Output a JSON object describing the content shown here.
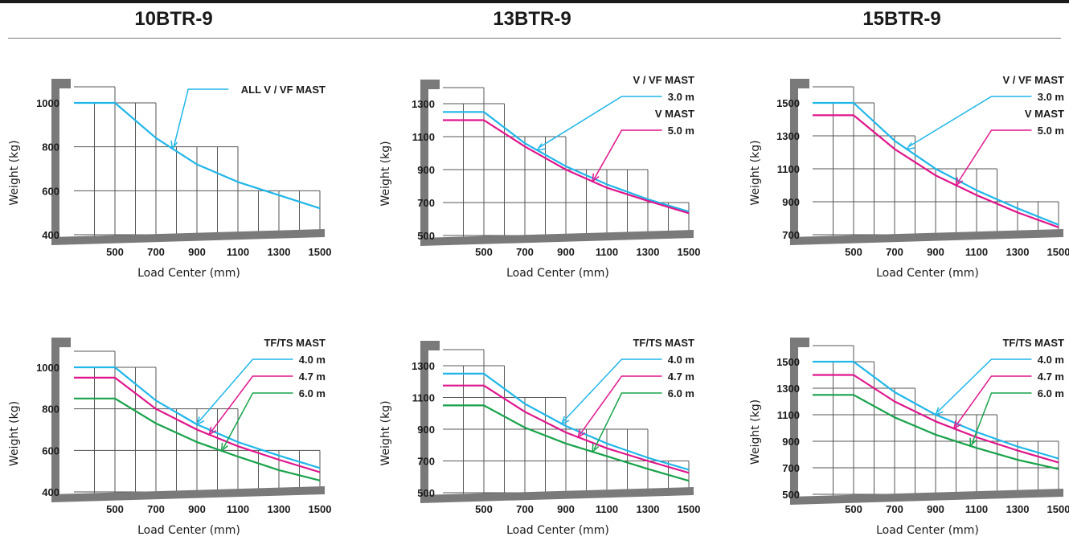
{
  "models": [
    "10BTR-9",
    "13BTR-9",
    "15BTR-9"
  ],
  "colors": {
    "blue": "#1fb6ea",
    "magenta": "#e0158c",
    "green": "#17a24a",
    "grid": "#555555",
    "frame": "#7a7a7a"
  },
  "chart_data": [
    {
      "type": "line",
      "xlabel": "Load Center (mm)",
      "ylabel": "Weight (kg)",
      "xticks": [
        500,
        700,
        900,
        1100,
        1300,
        1500
      ],
      "yticks": [
        400,
        600,
        800,
        1000
      ],
      "xlim": [
        300,
        1500
      ],
      "ylim": [
        400,
        1000
      ],
      "series": [
        {
          "color": "blue",
          "x": [
            300,
            500,
            700,
            900,
            1100,
            1300,
            1500
          ],
          "y": [
            1000,
            1000,
            840,
            720,
            640,
            580,
            520
          ]
        }
      ],
      "annotations": [
        {
          "text": "ALL V / VF  MAST",
          "series": 0
        }
      ]
    },
    {
      "type": "line",
      "xlabel": "Load Center (mm)",
      "ylabel": "Weight (kg)",
      "xticks": [
        500,
        700,
        900,
        1100,
        1300,
        1500
      ],
      "yticks": [
        500,
        700,
        900,
        1100,
        1300
      ],
      "xlim": [
        300,
        1500
      ],
      "ylim": [
        500,
        1300
      ],
      "series": [
        {
          "color": "blue",
          "x": [
            300,
            500,
            700,
            900,
            1100,
            1300,
            1500
          ],
          "y": [
            1250,
            1250,
            1060,
            920,
            810,
            720,
            645
          ]
        },
        {
          "color": "magenta",
          "x": [
            300,
            500,
            700,
            900,
            1100,
            1300,
            1500
          ],
          "y": [
            1200,
            1200,
            1040,
            900,
            790,
            710,
            635
          ]
        }
      ],
      "annotations": [
        {
          "text": "V / VF  MAST",
          "series": null
        },
        {
          "text": "3.0 m",
          "series": 0
        },
        {
          "text": "V  MAST",
          "series": null
        },
        {
          "text": "5.0 m",
          "series": 1
        }
      ]
    },
    {
      "type": "line",
      "xlabel": "Load Center (mm)",
      "ylabel": "Weight (kg)",
      "xticks": [
        500,
        700,
        900,
        1100,
        1300,
        1500
      ],
      "yticks": [
        700,
        900,
        1100,
        1300,
        1500
      ],
      "xlim": [
        300,
        1500
      ],
      "ylim": [
        700,
        1500
      ],
      "series": [
        {
          "color": "blue",
          "x": [
            300,
            500,
            700,
            900,
            1100,
            1300,
            1500
          ],
          "y": [
            1500,
            1500,
            1270,
            1100,
            970,
            860,
            760
          ]
        },
        {
          "color": "magenta",
          "x": [
            300,
            500,
            700,
            900,
            1100,
            1300,
            1500
          ],
          "y": [
            1425,
            1425,
            1220,
            1060,
            940,
            835,
            745
          ]
        }
      ],
      "annotations": [
        {
          "text": "V / VF  MAST",
          "series": null
        },
        {
          "text": "3.0 m",
          "series": 0
        },
        {
          "text": "V  MAST",
          "series": null
        },
        {
          "text": "5.0 m",
          "series": 1
        }
      ]
    },
    {
      "type": "line",
      "xlabel": "Load Center (mm)",
      "ylabel": "Weight (kg)",
      "xticks": [
        500,
        700,
        900,
        1100,
        1300,
        1500
      ],
      "yticks": [
        400,
        600,
        800,
        1000
      ],
      "xlim": [
        300,
        1500
      ],
      "ylim": [
        400,
        1000
      ],
      "series": [
        {
          "color": "blue",
          "x": [
            300,
            500,
            700,
            900,
            1100,
            1300,
            1500
          ],
          "y": [
            1000,
            1000,
            840,
            725,
            640,
            575,
            515
          ]
        },
        {
          "color": "magenta",
          "x": [
            300,
            500,
            700,
            900,
            1100,
            1300,
            1500
          ],
          "y": [
            950,
            950,
            800,
            700,
            620,
            555,
            495
          ]
        },
        {
          "color": "green",
          "x": [
            300,
            500,
            700,
            900,
            1100,
            1300,
            1500
          ],
          "y": [
            850,
            850,
            730,
            640,
            570,
            505,
            455
          ]
        }
      ],
      "annotations": [
        {
          "text": "TF/TS  MAST",
          "series": null
        },
        {
          "text": "4.0 m",
          "series": 0
        },
        {
          "text": "4.7 m",
          "series": 1
        },
        {
          "text": "6.0 m",
          "series": 2
        }
      ]
    },
    {
      "type": "line",
      "xlabel": "Load Center (mm)",
      "ylabel": "Weight (kg)",
      "xticks": [
        500,
        700,
        900,
        1100,
        1300,
        1500
      ],
      "yticks": [
        500,
        700,
        900,
        1100,
        1300
      ],
      "xlim": [
        300,
        1500
      ],
      "ylim": [
        500,
        1300
      ],
      "series": [
        {
          "color": "blue",
          "x": [
            300,
            500,
            700,
            900,
            1100,
            1300,
            1500
          ],
          "y": [
            1250,
            1250,
            1060,
            920,
            810,
            720,
            645
          ]
        },
        {
          "color": "magenta",
          "x": [
            300,
            500,
            700,
            900,
            1100,
            1300,
            1500
          ],
          "y": [
            1175,
            1175,
            1010,
            880,
            780,
            700,
            625
          ]
        },
        {
          "color": "green",
          "x": [
            300,
            500,
            700,
            900,
            1100,
            1300,
            1500
          ],
          "y": [
            1050,
            1050,
            910,
            810,
            730,
            650,
            575
          ]
        }
      ],
      "annotations": [
        {
          "text": "TF/TS  MAST",
          "series": null
        },
        {
          "text": "4.0 m",
          "series": 0
        },
        {
          "text": "4.7 m",
          "series": 1
        },
        {
          "text": "6.0 m",
          "series": 2
        }
      ]
    },
    {
      "type": "line",
      "xlabel": "Load Center (mm)",
      "ylabel": "Weight (kg)",
      "xticks": [
        500,
        700,
        900,
        1100,
        1300,
        1500
      ],
      "yticks": [
        500,
        700,
        900,
        1100,
        1300,
        1500
      ],
      "xlim": [
        300,
        1500
      ],
      "ylim": [
        500,
        1500
      ],
      "series": [
        {
          "color": "blue",
          "x": [
            300,
            500,
            700,
            900,
            1100,
            1300,
            1500
          ],
          "y": [
            1500,
            1500,
            1270,
            1100,
            970,
            860,
            770
          ]
        },
        {
          "color": "magenta",
          "x": [
            300,
            500,
            700,
            900,
            1100,
            1300,
            1500
          ],
          "y": [
            1400,
            1400,
            1200,
            1050,
            930,
            830,
            740
          ]
        },
        {
          "color": "green",
          "x": [
            300,
            500,
            700,
            900,
            1100,
            1300,
            1500
          ],
          "y": [
            1250,
            1250,
            1080,
            950,
            850,
            760,
            690
          ]
        }
      ],
      "annotations": [
        {
          "text": "TF/TS  MAST",
          "series": null
        },
        {
          "text": "4.0 m",
          "series": 0
        },
        {
          "text": "4.7 m",
          "series": 1
        },
        {
          "text": "6.0 m",
          "series": 2
        }
      ]
    }
  ]
}
